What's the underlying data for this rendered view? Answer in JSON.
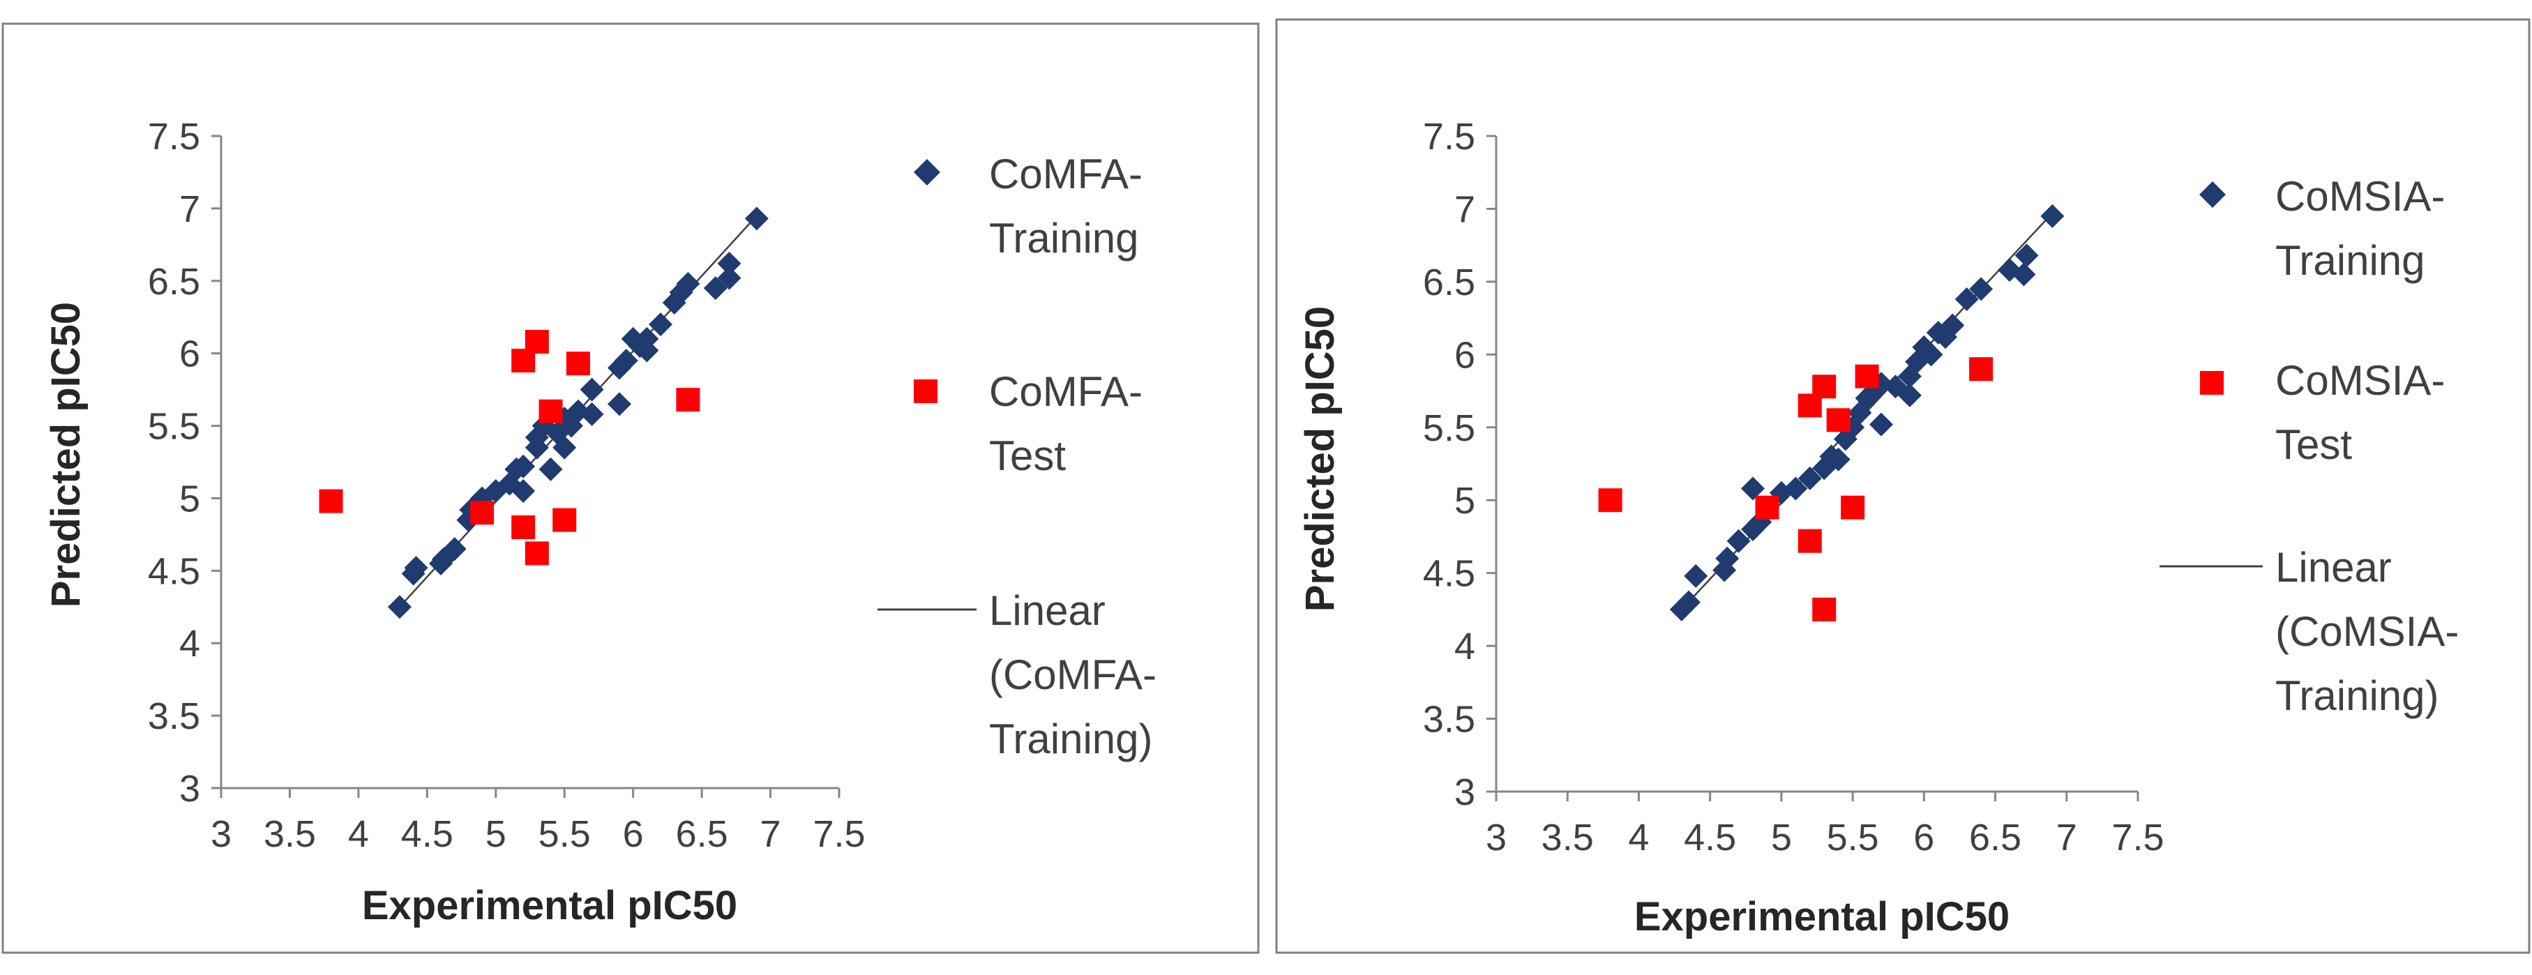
{
  "chart_data": [
    {
      "type": "scatter",
      "name": "comfa",
      "xlabel": "Experimental pIC50",
      "ylabel": "Predicted pIC50",
      "xlim": [
        3,
        7.5
      ],
      "ylim": [
        3,
        7.5
      ],
      "x_ticks": [
        "3",
        "3.5",
        "4",
        "4.5",
        "5",
        "5.5",
        "6",
        "6.5",
        "7",
        "7.5"
      ],
      "y_ticks": [
        "3",
        "3.5",
        "4",
        "4.5",
        "5",
        "5.5",
        "6",
        "6.5",
        "7",
        "7.5"
      ],
      "legend": {
        "training_lines": [
          "CoMFA-",
          "Training"
        ],
        "test_lines": [
          "CoMFA-",
          "Test"
        ],
        "linear_lines": [
          "Linear",
          "(CoMFA-",
          "Training)"
        ]
      },
      "series": [
        {
          "name": "CoMFA-Training",
          "marker": "diamond",
          "color": "#1f3b70",
          "points": [
            [
              4.3,
              4.25
            ],
            [
              4.4,
              4.48
            ],
            [
              4.42,
              4.52
            ],
            [
              4.6,
              4.55
            ],
            [
              4.62,
              4.58
            ],
            [
              4.7,
              4.65
            ],
            [
              4.8,
              4.85
            ],
            [
              4.82,
              4.92
            ],
            [
              4.9,
              5.0
            ],
            [
              5.0,
              5.05
            ],
            [
              5.1,
              5.1
            ],
            [
              5.15,
              5.2
            ],
            [
              5.2,
              5.22
            ],
            [
              5.2,
              5.05
            ],
            [
              5.3,
              5.35
            ],
            [
              5.3,
              5.42
            ],
            [
              5.35,
              5.5
            ],
            [
              5.4,
              5.2
            ],
            [
              5.45,
              5.45
            ],
            [
              5.5,
              5.35
            ],
            [
              5.5,
              5.55
            ],
            [
              5.55,
              5.5
            ],
            [
              5.6,
              5.6
            ],
            [
              5.7,
              5.58
            ],
            [
              5.7,
              5.75
            ],
            [
              5.9,
              5.65
            ],
            [
              5.9,
              5.9
            ],
            [
              5.95,
              5.95
            ],
            [
              6.0,
              6.1
            ],
            [
              6.05,
              6.05
            ],
            [
              6.1,
              6.1
            ],
            [
              6.1,
              6.02
            ],
            [
              6.2,
              6.2
            ],
            [
              6.3,
              6.35
            ],
            [
              6.35,
              6.42
            ],
            [
              6.4,
              6.48
            ],
            [
              6.6,
              6.45
            ],
            [
              6.7,
              6.52
            ],
            [
              6.7,
              6.62
            ],
            [
              6.9,
              6.93
            ]
          ],
          "trendline": [
            [
              4.3,
              4.25
            ],
            [
              6.9,
              6.95
            ]
          ]
        },
        {
          "name": "CoMFA-Test",
          "marker": "square",
          "color": "#ff0000",
          "points": [
            [
              3.8,
              4.98
            ],
            [
              4.9,
              4.9
            ],
            [
              5.2,
              5.95
            ],
            [
              5.2,
              4.8
            ],
            [
              5.3,
              6.08
            ],
            [
              5.3,
              4.62
            ],
            [
              5.4,
              5.6
            ],
            [
              5.5,
              4.85
            ],
            [
              5.6,
              5.93
            ],
            [
              6.4,
              5.68
            ]
          ]
        }
      ]
    },
    {
      "type": "scatter",
      "name": "comsia",
      "xlabel": "Experimental pIC50",
      "ylabel": "Predicted pIC50",
      "xlim": [
        3,
        7.5
      ],
      "ylim": [
        3,
        7.5
      ],
      "x_ticks": [
        "3",
        "3.5",
        "4",
        "4.5",
        "5",
        "5.5",
        "6",
        "6.5",
        "7",
        "7.5"
      ],
      "y_ticks": [
        "3",
        "3.5",
        "4",
        "4.5",
        "5",
        "5.5",
        "6",
        "6.5",
        "7",
        "7.5"
      ],
      "legend": {
        "training_lines": [
          "CoMSIA-",
          "Training"
        ],
        "test_lines": [
          "CoMSIA-",
          "Test"
        ],
        "linear_lines": [
          "Linear",
          "(CoMSIA-",
          "Training)"
        ]
      },
      "series": [
        {
          "name": "CoMSIA-Training",
          "marker": "diamond",
          "color": "#1f3b70",
          "points": [
            [
              4.3,
              4.25
            ],
            [
              4.35,
              4.3
            ],
            [
              4.4,
              4.48
            ],
            [
              4.6,
              4.52
            ],
            [
              4.62,
              4.6
            ],
            [
              4.7,
              4.72
            ],
            [
              4.8,
              4.8
            ],
            [
              4.8,
              5.08
            ],
            [
              4.85,
              4.85
            ],
            [
              4.9,
              4.95
            ],
            [
              5.0,
              5.05
            ],
            [
              5.1,
              5.08
            ],
            [
              5.2,
              5.15
            ],
            [
              5.3,
              5.22
            ],
            [
              5.35,
              5.3
            ],
            [
              5.4,
              5.28
            ],
            [
              5.45,
              5.42
            ],
            [
              5.5,
              5.5
            ],
            [
              5.55,
              5.6
            ],
            [
              5.6,
              5.7
            ],
            [
              5.65,
              5.75
            ],
            [
              5.7,
              5.52
            ],
            [
              5.7,
              5.8
            ],
            [
              5.8,
              5.78
            ],
            [
              5.9,
              5.72
            ],
            [
              5.9,
              5.85
            ],
            [
              5.95,
              5.95
            ],
            [
              6.0,
              6.05
            ],
            [
              6.05,
              6.0
            ],
            [
              6.1,
              6.15
            ],
            [
              6.15,
              6.12
            ],
            [
              6.2,
              6.2
            ],
            [
              6.3,
              6.38
            ],
            [
              6.4,
              6.45
            ],
            [
              6.6,
              6.58
            ],
            [
              6.7,
              6.55
            ],
            [
              6.72,
              6.68
            ],
            [
              6.9,
              6.95
            ]
          ],
          "trendline": [
            [
              4.3,
              4.25
            ],
            [
              6.9,
              6.97
            ]
          ]
        },
        {
          "name": "CoMSIA-Test",
          "marker": "square",
          "color": "#ff0000",
          "points": [
            [
              3.8,
              5.0
            ],
            [
              4.9,
              4.95
            ],
            [
              5.2,
              5.65
            ],
            [
              5.2,
              4.72
            ],
            [
              5.3,
              5.78
            ],
            [
              5.3,
              4.25
            ],
            [
              5.4,
              5.55
            ],
            [
              5.5,
              4.95
            ],
            [
              5.6,
              5.85
            ],
            [
              6.4,
              5.9
            ]
          ]
        }
      ]
    }
  ]
}
